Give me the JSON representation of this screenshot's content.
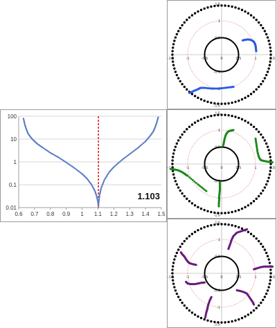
{
  "chart_data": [
    {
      "type": "scatter",
      "title": "",
      "xlabel": "",
      "ylabel": "",
      "xlim": [
        0.6,
        1.5
      ],
      "ylim": [
        0.01,
        100
      ],
      "yscale": "log",
      "x_ticks": [
        "0.6",
        "0.7",
        "0.8",
        "0.9",
        "1",
        "1.1",
        "1.2",
        "1.3",
        "1.4",
        "1.5"
      ],
      "y_ticks": [
        "0.01",
        "0.1",
        "1",
        "10",
        "100"
      ],
      "grid": "horizontal",
      "marker_color": "#5b7fc4",
      "vline": {
        "x": 1.103,
        "color": "#e02020",
        "style": "dashed"
      },
      "annotation": "1.103",
      "series": [
        {
          "x": [
            0.63,
            0.64,
            0.65,
            0.66,
            0.68,
            0.7,
            0.72,
            0.75,
            0.8,
            0.85,
            0.9,
            0.95,
            1.0,
            1.03,
            1.06,
            1.08,
            1.09,
            1.1,
            1.103
          ],
          "y": [
            80,
            40,
            25,
            17,
            11,
            8,
            6,
            4.3,
            2.5,
            1.6,
            0.95,
            0.55,
            0.3,
            0.19,
            0.1,
            0.055,
            0.035,
            0.018,
            0.012
          ]
        },
        {
          "x": [
            1.103,
            1.11,
            1.12,
            1.14,
            1.17,
            1.2,
            1.25,
            1.3,
            1.35,
            1.4,
            1.43,
            1.45,
            1.46,
            1.47,
            1.48
          ],
          "y": [
            0.012,
            0.035,
            0.07,
            0.16,
            0.35,
            0.6,
            1.2,
            2.2,
            4,
            8,
            14,
            22,
            32,
            50,
            90
          ]
        }
      ]
    },
    {
      "type": "scatter",
      "polar": true,
      "xlim": [
        -1.5,
        1.5
      ],
      "ylim": [
        -1.5,
        1.5
      ],
      "ticks": [
        "-1.5",
        "-1",
        "-0.5",
        "0",
        "0.5",
        "1",
        "1.5"
      ],
      "marker_color": "#2d5be3",
      "unit_circle": {
        "r": 1,
        "color": "#e07070",
        "style": "dotted"
      },
      "inner_circle": {
        "r": 0.5,
        "color": "#000000"
      },
      "outer_ring": {
        "r": 1.45,
        "color": "#000000",
        "style": "dots"
      },
      "series": [
        {
          "name": "",
          "x": [
            0.62,
            0.7,
            0.78,
            0.84,
            0.9,
            0.95,
            0.98,
            1.0,
            1.01,
            1.02
          ],
          "y": [
            0.42,
            0.44,
            0.45,
            0.44,
            0.42,
            0.38,
            0.33,
            0.27,
            0.2,
            0.1
          ]
        },
        {
          "name": "",
          "x": [
            -0.95,
            -0.88,
            -0.8,
            -0.72,
            -0.66,
            -0.62,
            -0.5,
            -0.3,
            -0.1,
            0.1,
            0.25,
            0.35
          ],
          "y": [
            -1.13,
            -1.1,
            -1.06,
            -1.03,
            -1.0,
            -0.98,
            -0.98,
            -1.0,
            -1.0,
            -0.98,
            -0.96,
            -0.95
          ]
        }
      ]
    },
    {
      "type": "scatter",
      "polar": true,
      "xlim": [
        -1.5,
        1.5
      ],
      "ylim": [
        -1.5,
        1.5
      ],
      "ticks": [
        "-1.5",
        "-1",
        "-0.5",
        "0",
        "0.5",
        "1",
        "1.5"
      ],
      "marker_color": "#1a8a1a",
      "unit_circle": {
        "r": 1,
        "color": "#e07070",
        "style": "dotted"
      },
      "inner_circle": {
        "r": 0.5,
        "color": "#000000"
      },
      "outer_ring": {
        "r": 1.45,
        "color": "#000000",
        "style": "dots"
      },
      "series": [
        {
          "name": "",
          "x": [
            0.05,
            0.07,
            0.09,
            0.12,
            0.16,
            0.2,
            0.25,
            0.3,
            0.35
          ],
          "y": [
            0.55,
            0.65,
            0.75,
            0.85,
            0.92,
            0.96,
            0.98,
            0.99,
            1.0
          ]
        },
        {
          "name": "",
          "x": [
            1.0,
            1.03,
            1.06,
            1.1,
            1.15,
            1.2,
            1.3,
            1.4,
            1.5
          ],
          "y": [
            0.75,
            0.55,
            0.35,
            0.2,
            0.12,
            0.1,
            0.08,
            0.06,
            0.05
          ]
        },
        {
          "name": "",
          "x": [
            -1.5,
            -1.4,
            -1.3,
            -1.2,
            -1.1,
            -1.05,
            -1.0,
            -0.7,
            -0.45
          ],
          "y": [
            -0.15,
            -0.16,
            -0.18,
            -0.22,
            -0.28,
            -0.32,
            -0.35,
            -0.6,
            -0.8
          ]
        },
        {
          "name": "",
          "x": [
            -0.05,
            -0.05,
            -0.05,
            -0.06,
            -0.07,
            -0.07,
            -0.08,
            -0.08
          ],
          "y": [
            -0.55,
            -0.65,
            -0.75,
            -0.85,
            -0.95,
            -1.05,
            -1.15,
            -1.25
          ]
        }
      ]
    },
    {
      "type": "scatter",
      "polar": true,
      "xlim": [
        -1.5,
        1.5
      ],
      "ylim": [
        -1.5,
        1.5
      ],
      "ticks": [
        "-1.5",
        "-1",
        "-0.5",
        "0",
        "0.5",
        "1",
        "1.5"
      ],
      "marker_color": "#6a1b7a",
      "unit_circle": {
        "r": 1,
        "color": "#e07070",
        "style": "dotted"
      },
      "inner_circle": {
        "r": 0.5,
        "color": "#000000"
      },
      "outer_ring": {
        "r": 1.45,
        "color": "#000000",
        "style": "dots"
      },
      "series": [
        {
          "name": "",
          "x": [
            -1.2,
            -1.15,
            -1.1,
            -1.05,
            -1.0,
            -0.95,
            -0.85,
            -0.75
          ],
          "y": [
            0.62,
            0.55,
            0.5,
            0.42,
            0.35,
            0.3,
            0.27,
            0.25
          ]
        },
        {
          "name": "",
          "x": [
            0.2,
            0.25,
            0.3,
            0.35,
            0.45,
            0.6,
            0.75
          ],
          "y": [
            0.72,
            0.85,
            1.0,
            1.1,
            1.2,
            1.25,
            1.3
          ]
        },
        {
          "name": "",
          "x": [
            0.95,
            1.05,
            1.15,
            1.25,
            1.35,
            1.45,
            1.5
          ],
          "y": [
            0.12,
            0.15,
            0.18,
            0.2,
            0.2,
            0.2,
            0.2
          ]
        },
        {
          "name": "",
          "x": [
            -1.05,
            -1.0,
            -0.9,
            -0.8,
            -0.7,
            -0.6,
            -0.5
          ],
          "y": [
            -0.25,
            -0.3,
            -0.32,
            -0.32,
            -0.3,
            -0.28,
            -0.27
          ]
        },
        {
          "name": "",
          "x": [
            0.45,
            0.55,
            0.65,
            0.75,
            0.85,
            0.92,
            0.95
          ],
          "y": [
            -0.5,
            -0.52,
            -0.55,
            -0.6,
            -0.75,
            -0.85,
            -0.92
          ]
        },
        {
          "name": "",
          "x": [
            -0.3,
            -0.35,
            -0.4,
            -0.42,
            -0.45,
            -0.48
          ],
          "y": [
            -0.7,
            -0.8,
            -0.95,
            -1.05,
            -1.15,
            -1.3
          ]
        }
      ]
    }
  ]
}
